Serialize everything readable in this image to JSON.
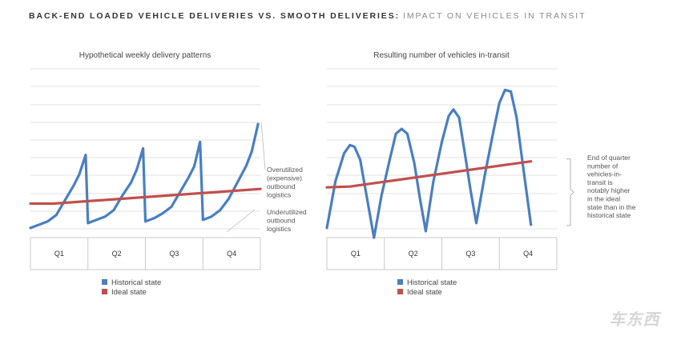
{
  "figure_title": {
    "main": "BACK-END LOADED VEHICLE DELIVERIES VS. SMOOTH DELIVERIES:",
    "sub": "IMPACT ON VEHICLES IN TRANSIT"
  },
  "colors": {
    "historical": "#4a7fc0",
    "ideal": "#c0504d",
    "grid": "#e2e2e2",
    "axis": "#c8c8c8"
  },
  "chart_data": [
    {
      "type": "line",
      "title": "Hypothetical weekly delivery patterns",
      "categories": [
        "Q1",
        "Q2",
        "Q3",
        "Q4"
      ],
      "xlabel": "",
      "ylabel": "",
      "ylim": [
        0,
        100
      ],
      "x_range": [
        0,
        4
      ],
      "grid": true,
      "series": [
        {
          "name": "Historical state",
          "color_key": "historical",
          "points": [
            [
              0,
              2
            ],
            [
              0.15,
              4
            ],
            [
              0.3,
              6
            ],
            [
              0.45,
              10
            ],
            [
              0.6,
              19
            ],
            [
              0.75,
              28
            ],
            [
              0.85,
              35
            ],
            [
              0.96,
              47
            ],
            [
              1.0,
              5
            ],
            [
              1.15,
              7
            ],
            [
              1.3,
              9
            ],
            [
              1.45,
              13
            ],
            [
              1.6,
              22
            ],
            [
              1.75,
              30
            ],
            [
              1.85,
              38
            ],
            [
              1.96,
              51
            ],
            [
              2.0,
              6
            ],
            [
              2.15,
              8
            ],
            [
              2.3,
              11
            ],
            [
              2.45,
              15
            ],
            [
              2.6,
              24
            ],
            [
              2.75,
              33
            ],
            [
              2.85,
              40
            ],
            [
              2.95,
              55
            ],
            [
              3.0,
              7
            ],
            [
              3.15,
              9
            ],
            [
              3.3,
              13
            ],
            [
              3.45,
              20
            ],
            [
              3.6,
              30
            ],
            [
              3.75,
              40
            ],
            [
              3.85,
              49
            ],
            [
              3.96,
              66
            ]
          ]
        },
        {
          "name": "Ideal state",
          "color_key": "ideal",
          "points": [
            [
              0,
              17
            ],
            [
              0.4,
              17
            ],
            [
              4,
              26
            ]
          ]
        }
      ],
      "annotations": [
        {
          "text": [
            "Overutilized",
            "(expensive)",
            "outbound",
            "logistics"
          ],
          "anchor_x": 3.96,
          "anchor_y": 66
        },
        {
          "text": [
            "Underutilized",
            "outbound",
            "logistics"
          ],
          "anchor_x": 3.6,
          "anchor_y": 25
        }
      ]
    },
    {
      "type": "line",
      "title": "Resulting number of vehicles in-transit",
      "categories": [
        "Q1",
        "Q2",
        "Q3",
        "Q4"
      ],
      "xlabel": "",
      "ylabel": "",
      "ylim": [
        0,
        100
      ],
      "x_range": [
        0,
        4
      ],
      "grid": true,
      "series": [
        {
          "name": "Historical state",
          "color_key": "historical",
          "points": [
            [
              0,
              2
            ],
            [
              0.15,
              31
            ],
            [
              0.3,
              48
            ],
            [
              0.4,
              53
            ],
            [
              0.48,
              52
            ],
            [
              0.58,
              44
            ],
            [
              0.7,
              20
            ],
            [
              0.82,
              -4
            ],
            [
              0.95,
              22
            ],
            [
              1.1,
              45
            ],
            [
              1.2,
              60
            ],
            [
              1.3,
              63
            ],
            [
              1.4,
              60
            ],
            [
              1.52,
              42
            ],
            [
              1.62,
              20
            ],
            [
              1.72,
              0
            ],
            [
              1.85,
              30
            ],
            [
              2.0,
              55
            ],
            [
              2.12,
              71
            ],
            [
              2.2,
              75
            ],
            [
              2.3,
              70
            ],
            [
              2.4,
              48
            ],
            [
              2.5,
              25
            ],
            [
              2.6,
              5
            ],
            [
              2.75,
              35
            ],
            [
              2.9,
              62
            ],
            [
              3.0,
              79
            ],
            [
              3.1,
              87
            ],
            [
              3.2,
              86
            ],
            [
              3.3,
              70
            ],
            [
              3.42,
              38
            ],
            [
              3.55,
              4
            ]
          ]
        },
        {
          "name": "Ideal state",
          "color_key": "ideal",
          "points": [
            [
              0,
              27
            ],
            [
              0.4,
              27.5
            ],
            [
              3.55,
              43
            ]
          ]
        }
      ],
      "annotations": [
        {
          "text": [
            "End of quarter",
            "number of",
            "vehicles-in-",
            "transit is",
            "notably higher",
            "in the ideal",
            "state than in the",
            "historical state"
          ],
          "bracket": [
            3.55,
            3,
            43
          ]
        }
      ]
    }
  ],
  "watermark": "车东西"
}
